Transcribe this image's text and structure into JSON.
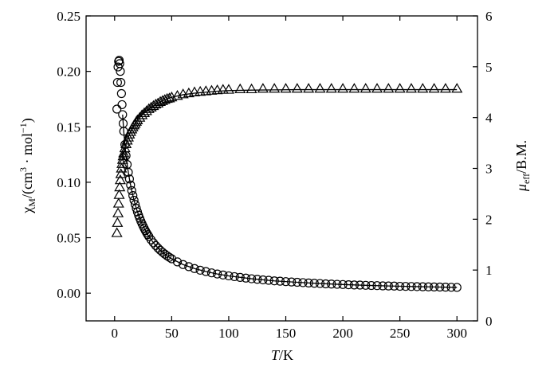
{
  "chart_data": {
    "type": "scatter",
    "x_axis": {
      "label_italic": "T",
      "label_rest": "/K",
      "lim": [
        -25,
        318
      ],
      "ticks": [
        0,
        50,
        100,
        150,
        200,
        250,
        300
      ],
      "tick_labels": [
        "0",
        "50",
        "100",
        "150",
        "200",
        "250",
        "300"
      ]
    },
    "y_left": {
      "label": "χM/(cm3 · mol−1)",
      "label_parts": {
        "chi": "χ",
        "chi_sub": "M",
        "pre": "/(cm",
        "sup1": "3",
        "mid": " · mol",
        "sup2": "−1",
        "post": ")"
      },
      "lim": [
        -0.025,
        0.25
      ],
      "ticks": [
        0,
        0.05,
        0.1,
        0.15,
        0.2,
        0.25
      ],
      "tick_labels": [
        "0.00",
        "0.05",
        "0.10",
        "0.15",
        "0.20",
        "0.25"
      ]
    },
    "y_right": {
      "label": "μeff/B.M.",
      "label_parts": {
        "mu": "μ",
        "mu_sub": "eff",
        "post": "/B.M."
      },
      "lim": [
        0,
        6
      ],
      "ticks": [
        0,
        1,
        2,
        3,
        4,
        5,
        6
      ],
      "tick_labels": [
        "0",
        "1",
        "2",
        "3",
        "4",
        "5",
        "6"
      ]
    },
    "series": [
      {
        "marker": "circle",
        "axis": "left",
        "x": [
          2,
          2.5,
          3,
          3.5,
          4,
          4.5,
          5,
          5.5,
          6,
          6.5,
          7,
          7.5,
          8,
          9,
          10,
          11,
          12,
          13,
          14,
          15,
          16,
          17,
          18,
          19,
          20,
          21,
          22,
          23,
          24,
          25,
          26,
          27,
          28,
          29,
          30,
          32,
          34,
          36,
          38,
          40,
          42,
          44,
          46,
          48,
          50,
          55,
          60,
          65,
          70,
          75,
          80,
          85,
          90,
          95,
          100,
          105,
          110,
          115,
          120,
          125,
          130,
          135,
          140,
          145,
          150,
          155,
          160,
          165,
          170,
          175,
          180,
          185,
          190,
          195,
          200,
          205,
          210,
          215,
          220,
          225,
          230,
          235,
          240,
          245,
          250,
          255,
          260,
          265,
          270,
          275,
          280,
          285,
          290,
          295,
          300
        ],
        "y": [
          0.166,
          0.19,
          0.204,
          0.209,
          0.21,
          0.207,
          0.2,
          0.19,
          0.18,
          0.17,
          0.161,
          0.153,
          0.146,
          0.134,
          0.124,
          0.116,
          0.109,
          0.103,
          0.0975,
          0.0925,
          0.088,
          0.0838,
          0.08,
          0.0765,
          0.0733,
          0.0703,
          0.0676,
          0.065,
          0.0626,
          0.0604,
          0.0583,
          0.0563,
          0.0545,
          0.0528,
          0.0511,
          0.0481,
          0.0454,
          0.0429,
          0.0407,
          0.0387,
          0.0369,
          0.0352,
          0.0337,
          0.0323,
          0.031,
          0.0282,
          0.0258,
          0.0239,
          0.0222,
          0.0207,
          0.0195,
          0.0183,
          0.0173,
          0.0164,
          0.0156,
          0.0149,
          0.0142,
          0.0136,
          0.013,
          0.0125,
          0.012,
          0.0116,
          0.0111,
          0.0108,
          0.0104,
          0.0101,
          0.0098,
          0.0095,
          0.0092,
          0.0089,
          0.0087,
          0.0084,
          0.0082,
          0.008,
          0.0078,
          0.0076,
          0.0074,
          0.0073,
          0.0071,
          0.0069,
          0.0068,
          0.0066,
          0.0065,
          0.0064,
          0.0062,
          0.0061,
          0.006,
          0.0059,
          0.0058,
          0.0057,
          0.0056,
          0.0055,
          0.0054,
          0.0053,
          0.0052
        ]
      },
      {
        "marker": "triangle",
        "axis": "right",
        "x": [
          2,
          2.5,
          3,
          3.5,
          4,
          4.5,
          5,
          5.5,
          6,
          6.5,
          7,
          7.5,
          8,
          9,
          10,
          11,
          12,
          13,
          14,
          15,
          16,
          17,
          18,
          19,
          20,
          22,
          24,
          26,
          28,
          30,
          32,
          34,
          36,
          38,
          40,
          42,
          44,
          46,
          48,
          50,
          55,
          60,
          65,
          70,
          75,
          80,
          85,
          90,
          95,
          100,
          110,
          120,
          130,
          140,
          150,
          160,
          170,
          180,
          190,
          200,
          210,
          220,
          230,
          240,
          250,
          260,
          270,
          280,
          290,
          300
        ],
        "y": [
          1.73,
          1.93,
          2.12,
          2.31,
          2.48,
          2.63,
          2.77,
          2.89,
          3.0,
          3.09,
          3.17,
          3.24,
          3.3,
          3.4,
          3.48,
          3.55,
          3.61,
          3.67,
          3.72,
          3.77,
          3.81,
          3.85,
          3.88,
          3.92,
          3.95,
          4.0,
          4.05,
          4.09,
          4.13,
          4.17,
          4.2,
          4.23,
          4.26,
          4.28,
          4.31,
          4.33,
          4.35,
          4.37,
          4.38,
          4.4,
          4.43,
          4.46,
          4.48,
          4.5,
          4.51,
          4.52,
          4.53,
          4.54,
          4.55,
          4.55,
          4.56,
          4.56,
          4.57,
          4.57,
          4.57,
          4.57,
          4.57,
          4.57,
          4.57,
          4.57,
          4.57,
          4.57,
          4.57,
          4.57,
          4.57,
          4.57,
          4.57,
          4.57,
          4.57,
          4.57
        ]
      },
      {
        "marker": "none",
        "style": "line",
        "axis": "left",
        "x": [
          7,
          8,
          9,
          10,
          11,
          12,
          13,
          14,
          15,
          16,
          17,
          18,
          19,
          20,
          22,
          24,
          26,
          28,
          30,
          35,
          40,
          45,
          50,
          60,
          70,
          80,
          90,
          100,
          120,
          140,
          160,
          180,
          200,
          220,
          240,
          260,
          280,
          300
        ],
        "y": [
          0.161,
          0.146,
          0.134,
          0.124,
          0.116,
          0.109,
          0.103,
          0.0975,
          0.0925,
          0.088,
          0.0838,
          0.08,
          0.0765,
          0.0733,
          0.0676,
          0.0626,
          0.0583,
          0.0545,
          0.0511,
          0.0441,
          0.0387,
          0.0344,
          0.031,
          0.0258,
          0.0222,
          0.0195,
          0.0173,
          0.0156,
          0.013,
          0.0111,
          0.0098,
          0.0087,
          0.0078,
          0.0071,
          0.0065,
          0.006,
          0.0056,
          0.0052
        ]
      },
      {
        "marker": "none",
        "style": "line",
        "axis": "right",
        "x": [
          7,
          8,
          9,
          10,
          12,
          14,
          16,
          18,
          20,
          24,
          28,
          32,
          36,
          40,
          45,
          50,
          60,
          70,
          80,
          90,
          100,
          120,
          140,
          160,
          200,
          250,
          300
        ],
        "y": [
          3.17,
          3.3,
          3.4,
          3.48,
          3.61,
          3.72,
          3.81,
          3.88,
          3.95,
          4.05,
          4.13,
          4.2,
          4.26,
          4.31,
          4.36,
          4.4,
          4.45,
          4.48,
          4.5,
          4.52,
          4.53,
          4.54,
          4.545,
          4.55,
          4.55,
          4.55,
          4.55
        ]
      }
    ]
  }
}
